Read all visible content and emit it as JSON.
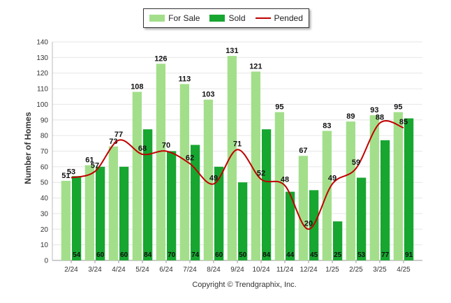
{
  "chart_data": {
    "type": "bar",
    "categories": [
      "2/24",
      "3/24",
      "4/24",
      "5/24",
      "6/24",
      "7/24",
      "8/24",
      "9/24",
      "10/24",
      "11/24",
      "12/24",
      "1/25",
      "2/25",
      "3/25",
      "4/25"
    ],
    "series": [
      {
        "name": "For Sale",
        "type": "bar",
        "color": "#a3df8a",
        "values": [
          51,
          61,
          73,
          108,
          126,
          113,
          103,
          131,
          121,
          95,
          67,
          83,
          89,
          93,
          95
        ]
      },
      {
        "name": "Sold",
        "type": "bar",
        "color": "#17a630",
        "values": [
          54,
          60,
          60,
          84,
          70,
          74,
          60,
          50,
          84,
          44,
          45,
          25,
          53,
          77,
          91
        ]
      },
      {
        "name": "Pended",
        "type": "line",
        "color": "#c00000",
        "values": [
          53,
          57,
          77,
          68,
          70,
          62,
          49,
          71,
          52,
          48,
          20,
          49,
          59,
          88,
          85
        ]
      }
    ],
    "xlabel": "",
    "ylabel": "Number of Homes",
    "ylim": [
      0,
      140
    ],
    "yticks": [
      0,
      10,
      20,
      30,
      40,
      50,
      60,
      70,
      80,
      90,
      100,
      110,
      120,
      130,
      140
    ],
    "grid": true,
    "legend_position": "top-center"
  },
  "footer": "Copyright © Trendgraphix, Inc."
}
